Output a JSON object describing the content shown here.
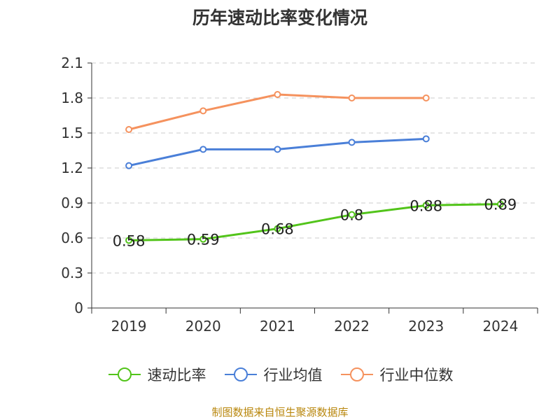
{
  "chart_data": {
    "type": "line",
    "title": "历年速动比率变化情况",
    "categories": [
      "2019",
      "2020",
      "2021",
      "2022",
      "2023",
      "2024"
    ],
    "ylim": [
      0,
      2.1
    ],
    "yticks": [
      "0",
      "0.3",
      "0.6",
      "0.9",
      "1.2",
      "1.5",
      "1.8",
      "2.1"
    ],
    "grid": true,
    "legend_position": "bottom",
    "series": [
      {
        "name": "速动比率",
        "color": "#52c41a",
        "values": [
          0.58,
          0.59,
          0.68,
          0.8,
          0.88,
          0.89
        ],
        "labels": [
          "0.58",
          "0.59",
          "0.68",
          "0.8",
          "0.88",
          "0.89"
        ]
      },
      {
        "name": "行业均值",
        "color": "#4a7fd8",
        "values": [
          1.22,
          1.36,
          1.36,
          1.42,
          1.45,
          null
        ]
      },
      {
        "name": "行业中位数",
        "color": "#f5925e",
        "values": [
          1.53,
          1.69,
          1.83,
          1.8,
          1.8,
          null
        ]
      }
    ]
  },
  "source": "制图数据来自恒生聚源数据库"
}
